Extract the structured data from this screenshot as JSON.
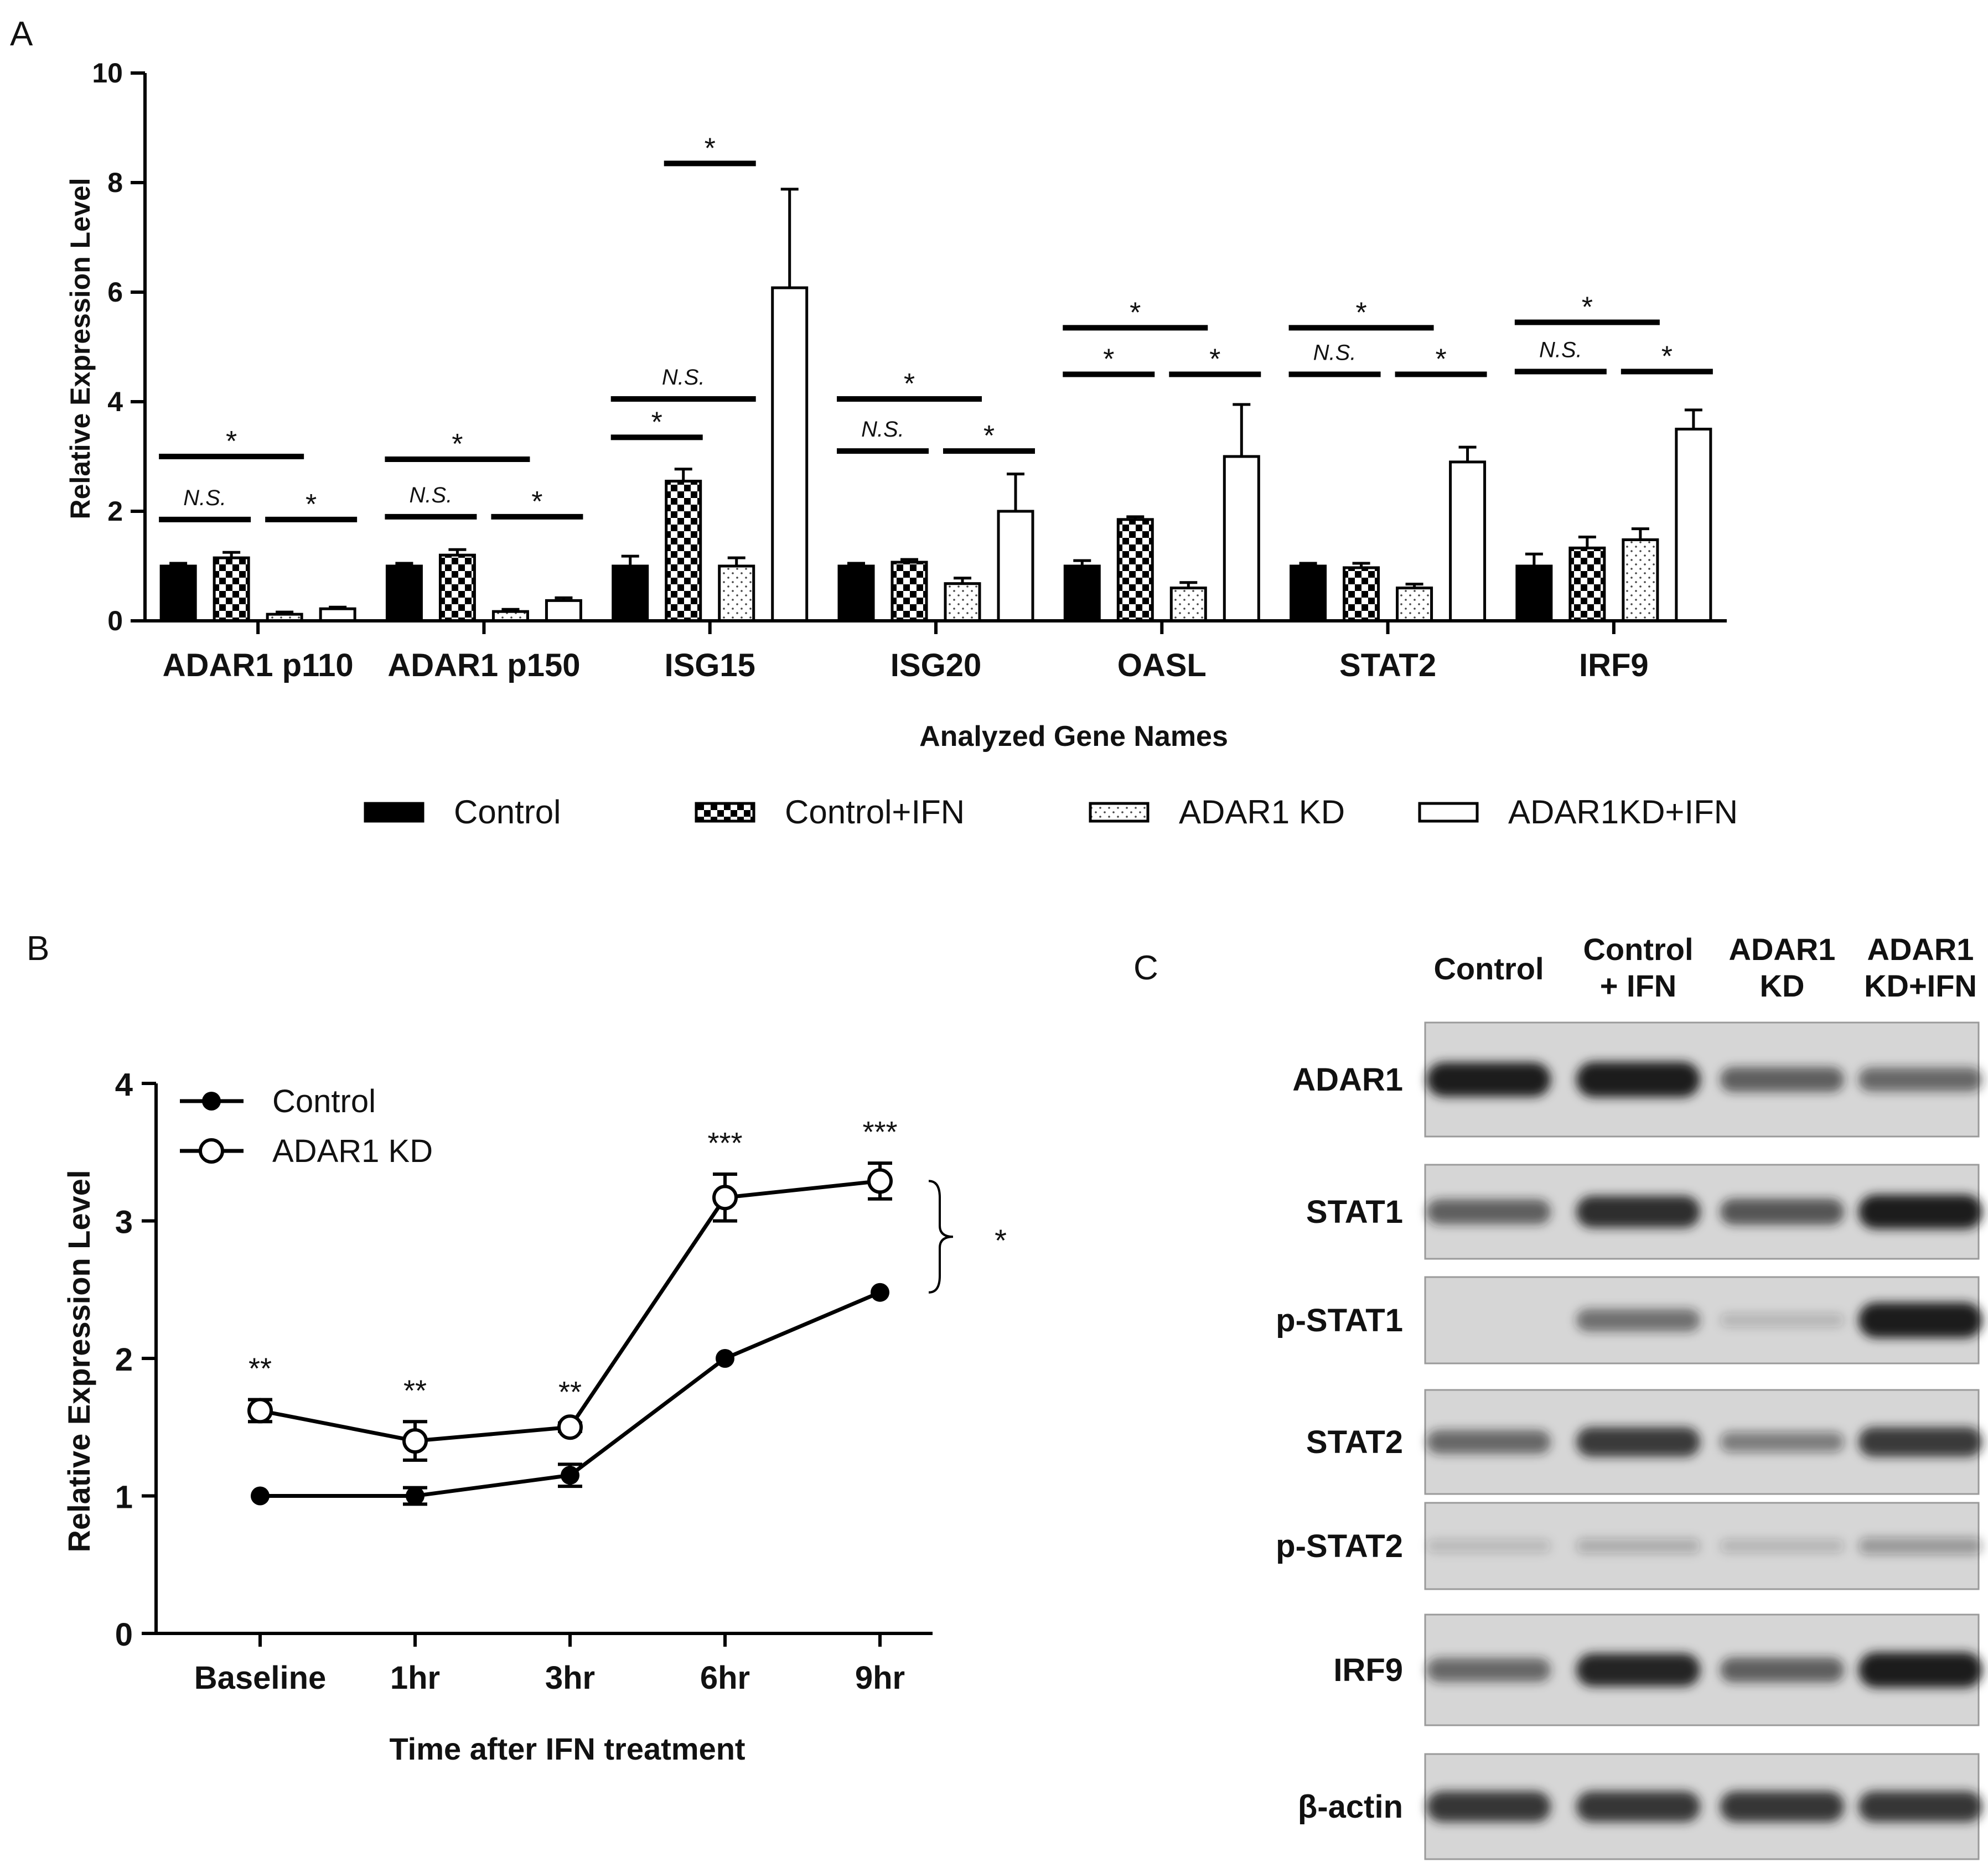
{
  "panels": {
    "a": "A",
    "b": "B",
    "c": "C"
  },
  "colors": {
    "control": "#000000",
    "outline": "#000000",
    "background": "#ffffff",
    "blot_bg": "#d6d6d6",
    "band": "#1c1c1c"
  },
  "chart_data": [
    {
      "type": "bar",
      "panel": "A",
      "title": "",
      "xlabel": "Analyzed Gene Names",
      "ylabel": "Relative Expression Level",
      "ylim": [
        0,
        10
      ],
      "yticks": [
        "0",
        "2",
        "4",
        "6",
        "8",
        "10"
      ],
      "categories": [
        "ADAR1 p110",
        "ADAR1 p150",
        "ISG15",
        "ISG20",
        "OASL",
        "STAT2",
        "IRF9"
      ],
      "series": [
        {
          "name": "Control",
          "pattern": "solid",
          "values": [
            1.0,
            1.0,
            1.0,
            1.0,
            1.0,
            1.0,
            1.0
          ],
          "errors": [
            0.05,
            0.05,
            0.18,
            0.05,
            0.1,
            0.05,
            0.22
          ]
        },
        {
          "name": "Control+IFN",
          "pattern": "checker",
          "values": [
            1.15,
            1.2,
            2.55,
            1.07,
            1.85,
            0.97,
            1.33
          ],
          "errors": [
            0.1,
            0.1,
            0.22,
            0.05,
            0.05,
            0.08,
            0.2
          ]
        },
        {
          "name": "ADAR1 KD",
          "pattern": "dots",
          "values": [
            0.12,
            0.17,
            1.0,
            0.68,
            0.6,
            0.6,
            1.48
          ],
          "errors": [
            0.04,
            0.04,
            0.15,
            0.1,
            0.1,
            0.07,
            0.2
          ]
        },
        {
          "name": "ADAR1KD+IFN",
          "pattern": "open",
          "values": [
            0.22,
            0.37,
            6.08,
            2.0,
            3.0,
            2.9,
            3.5
          ],
          "errors": [
            0.03,
            0.05,
            1.8,
            0.68,
            0.95,
            0.27,
            0.35
          ]
        }
      ],
      "significance": [
        {
          "group": 0,
          "from": 0,
          "to": 2,
          "level": 3.0,
          "label": "*"
        },
        {
          "group": 0,
          "from": 0,
          "to": 1,
          "level": 1.85,
          "label": "N.S."
        },
        {
          "group": 0,
          "from": 2,
          "to": 3,
          "level": 1.85,
          "label": "*"
        },
        {
          "group": 1,
          "from": 0,
          "to": 2,
          "level": 2.95,
          "label": "*"
        },
        {
          "group": 1,
          "from": 0,
          "to": 1,
          "level": 1.9,
          "label": "N.S."
        },
        {
          "group": 1,
          "from": 2,
          "to": 3,
          "level": 1.9,
          "label": "*"
        },
        {
          "group": 2,
          "from": 1,
          "to": 2,
          "level": 8.35,
          "label": "*"
        },
        {
          "group": 2,
          "from": 0,
          "to": 2,
          "level": 4.05,
          "label": "N.S."
        },
        {
          "group": 2,
          "from": 0,
          "to": 1,
          "level": 3.35,
          "label": "*"
        },
        {
          "group": 3,
          "from": 0,
          "to": 2,
          "level": 4.05,
          "label": "*"
        },
        {
          "group": 3,
          "from": 0,
          "to": 1,
          "level": 3.1,
          "label": "N.S."
        },
        {
          "group": 3,
          "from": 2,
          "to": 3,
          "level": 3.1,
          "label": "*"
        },
        {
          "group": 4,
          "from": 0,
          "to": 2,
          "level": 5.35,
          "label": "*"
        },
        {
          "group": 4,
          "from": 0,
          "to": 1,
          "level": 4.5,
          "label": "*"
        },
        {
          "group": 4,
          "from": 2,
          "to": 3,
          "level": 4.5,
          "label": "*"
        },
        {
          "group": 5,
          "from": 0,
          "to": 2,
          "level": 5.35,
          "label": "*"
        },
        {
          "group": 5,
          "from": 0,
          "to": 1,
          "level": 4.5,
          "label": "N.S."
        },
        {
          "group": 5,
          "from": 2,
          "to": 3,
          "level": 4.5,
          "label": "*"
        },
        {
          "group": 6,
          "from": 0,
          "to": 2,
          "level": 5.45,
          "label": "*"
        },
        {
          "group": 6,
          "from": 0,
          "to": 1,
          "level": 4.55,
          "label": "N.S."
        },
        {
          "group": 6,
          "from": 2,
          "to": 3,
          "level": 4.55,
          "label": "*"
        }
      ],
      "legend_position": "bottom"
    },
    {
      "type": "line",
      "panel": "B",
      "title": "",
      "xlabel": "Time after IFN treatment",
      "ylabel": "Relative Expression Level",
      "ylim": [
        0,
        4
      ],
      "yticks": [
        "0",
        "1",
        "2",
        "3",
        "4"
      ],
      "categories": [
        "Baseline",
        "1hr",
        "3hr",
        "6hr",
        "9hr"
      ],
      "series": [
        {
          "name": "Control",
          "marker": "filled-circle",
          "values": [
            1.0,
            1.0,
            1.15,
            2.0,
            2.48
          ],
          "errors": [
            0.0,
            0.06,
            0.08,
            0.0,
            0.0
          ]
        },
        {
          "name": "ADAR1 KD",
          "marker": "open-circle",
          "values": [
            1.62,
            1.4,
            1.5,
            3.17,
            3.29
          ],
          "errors": [
            0.08,
            0.14,
            0.03,
            0.17,
            0.13
          ]
        }
      ],
      "point_annotations": [
        "**",
        "**",
        "**",
        "***",
        "***"
      ],
      "bracket_label": "*",
      "legend_position": "top-left"
    }
  ],
  "blot": {
    "columns": [
      "Control",
      "Control\n+ IFN",
      "ADAR1\nKD",
      "ADAR1\nKD+IFN"
    ],
    "rows": [
      {
        "label": "ADAR1",
        "intensity": [
          0.95,
          1.0,
          0.55,
          0.5
        ]
      },
      {
        "label": "STAT1",
        "intensity": [
          0.55,
          0.85,
          0.6,
          0.95
        ]
      },
      {
        "label": "p-STAT1",
        "intensity": [
          0.0,
          0.45,
          0.05,
          1.0
        ]
      },
      {
        "label": "STAT2",
        "intensity": [
          0.5,
          0.75,
          0.35,
          0.75
        ]
      },
      {
        "label": "p-STAT2",
        "intensity": [
          0.03,
          0.1,
          0.05,
          0.2
        ]
      },
      {
        "label": "IRF9",
        "intensity": [
          0.5,
          0.9,
          0.55,
          1.0
        ]
      },
      {
        "label": "β-actin",
        "intensity": [
          0.8,
          0.8,
          0.8,
          0.8
        ]
      }
    ]
  }
}
